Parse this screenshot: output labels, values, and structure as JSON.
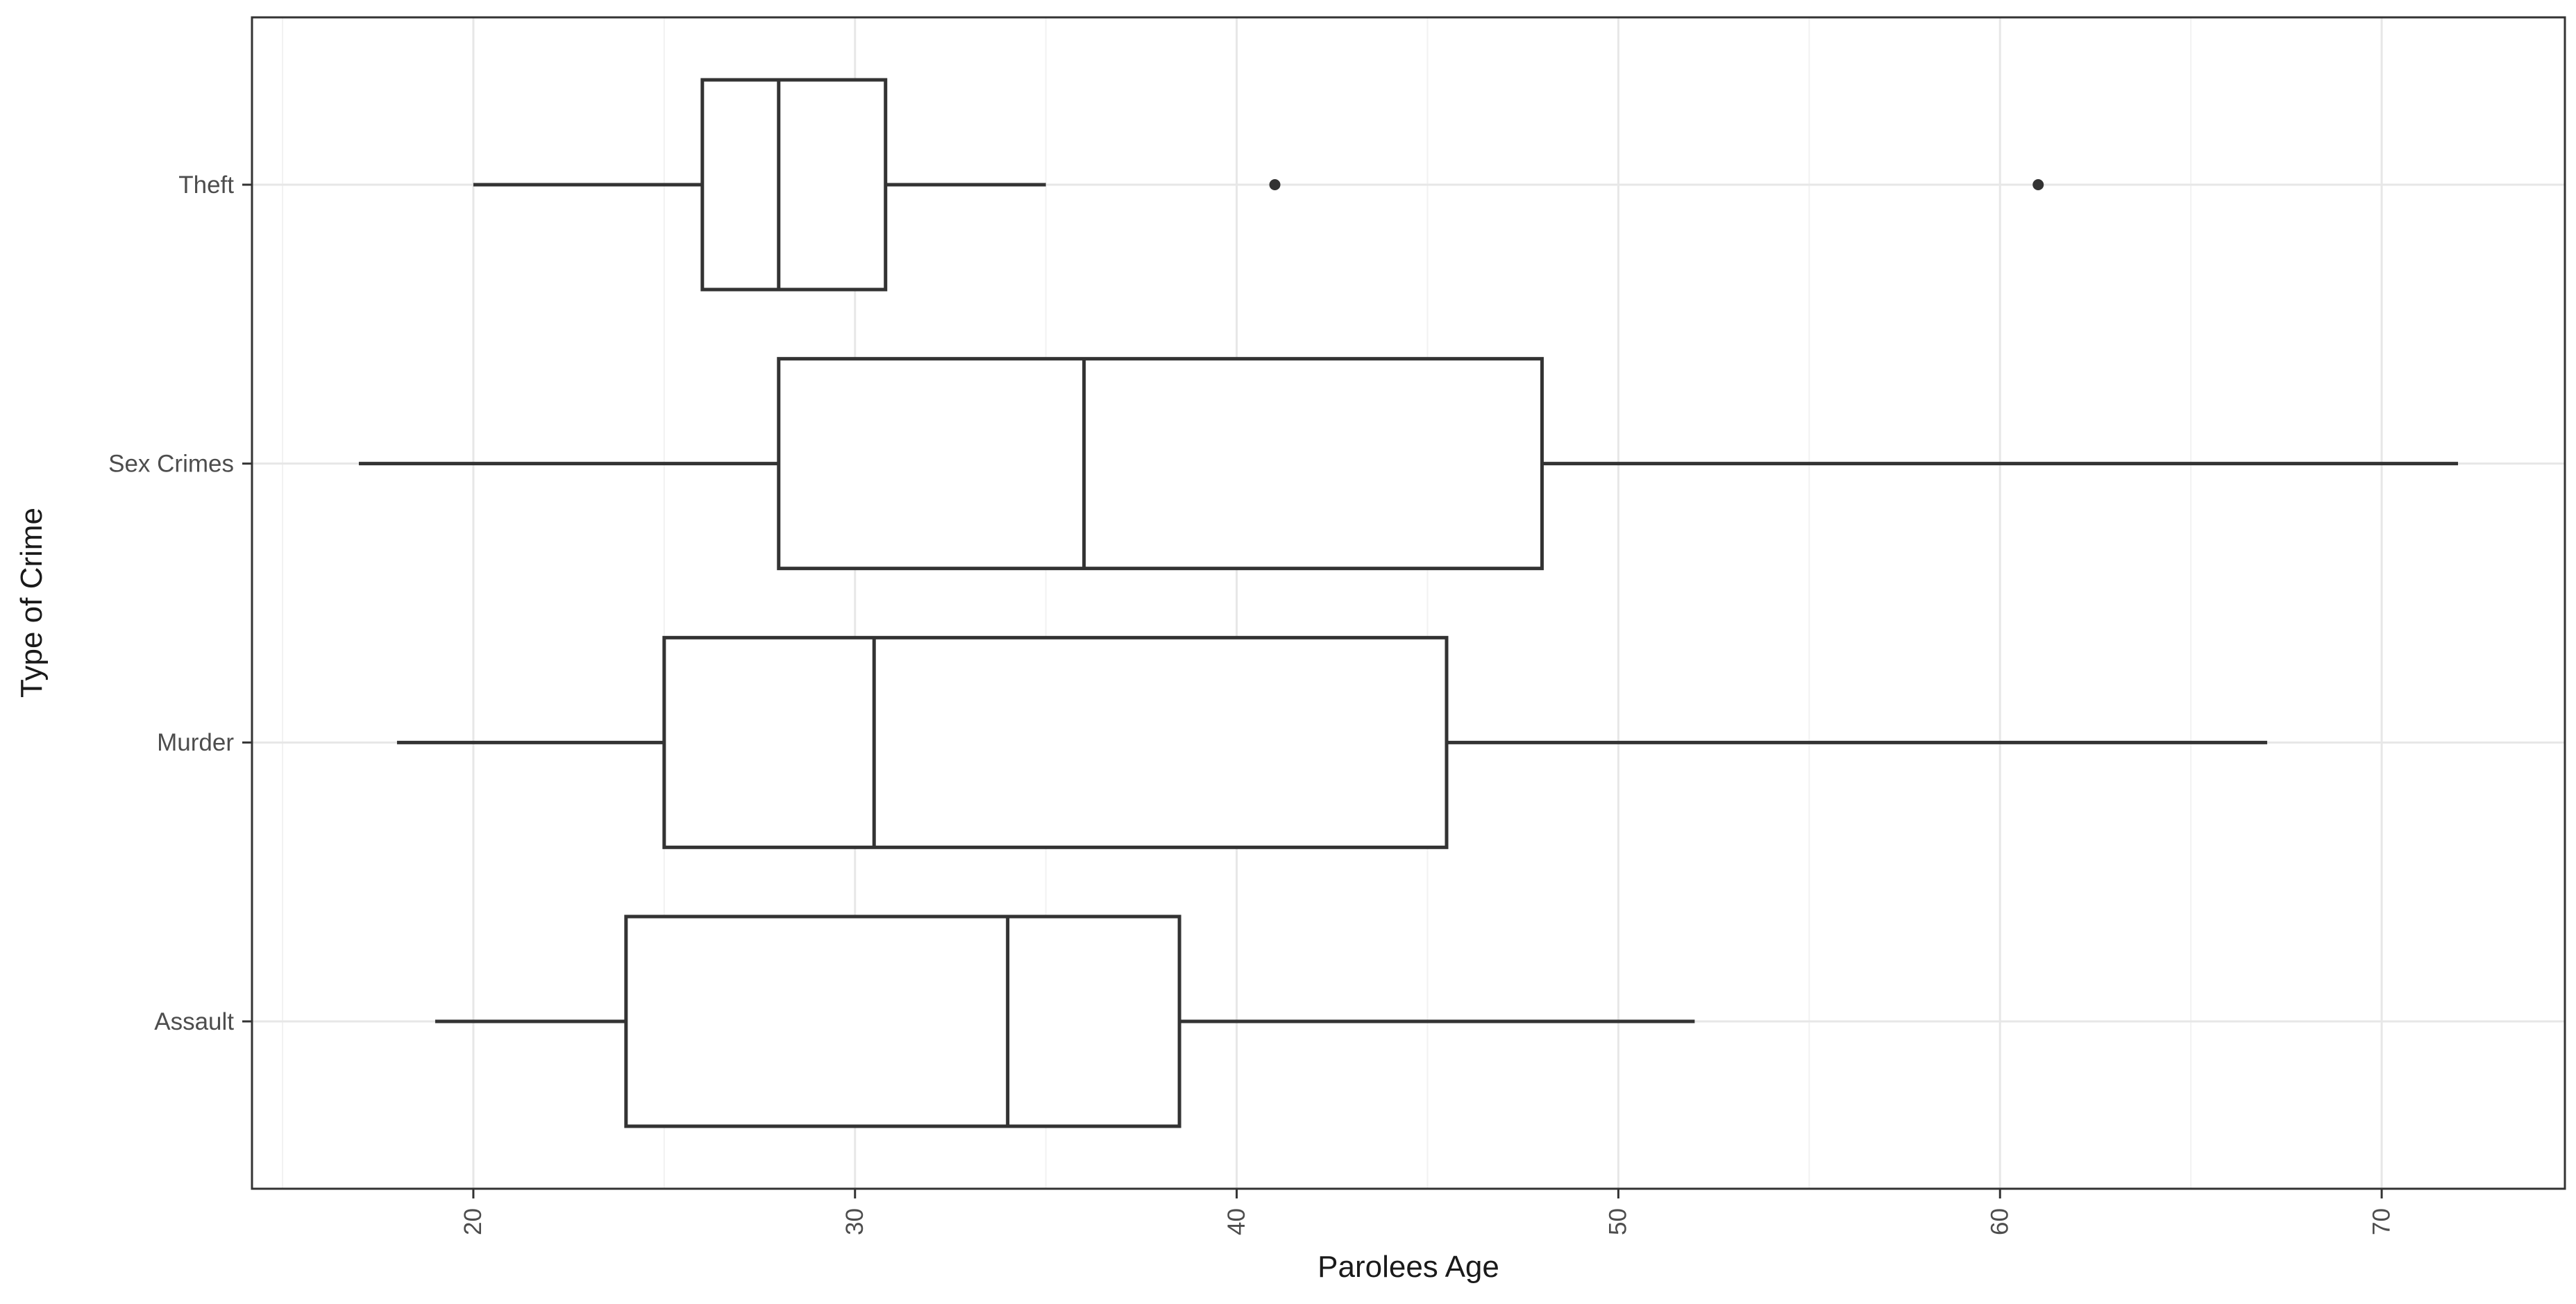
{
  "chart_data": {
    "type": "boxplot",
    "orientation": "horizontal",
    "title": "",
    "xlabel": "Parolees Age",
    "ylabel": "Type of Crime",
    "x_ticks": [
      20,
      30,
      40,
      50,
      60,
      70
    ],
    "x_tick_labels": [
      "20",
      "30",
      "40",
      "50",
      "60",
      "70"
    ],
    "x_minor_gridlines": [
      15,
      25,
      35,
      45,
      55,
      65
    ],
    "xlim": [
      14.2,
      74.8
    ],
    "grid": "major-and-minor-vertical, major-horizontal-per-category",
    "legend": "none",
    "categories_top_to_bottom": [
      "Theft",
      "Sex Crimes",
      "Murder",
      "Assault"
    ],
    "series": [
      {
        "category": "Theft",
        "min": 20,
        "q1": 26,
        "median": 28,
        "q3": 30.8,
        "max": 35,
        "outliers": [
          41,
          61
        ]
      },
      {
        "category": "Sex Crimes",
        "min": 17,
        "q1": 28,
        "median": 36,
        "q3": 48,
        "max": 72,
        "outliers": []
      },
      {
        "category": "Murder",
        "min": 18,
        "q1": 25,
        "median": 30.5,
        "q3": 45.5,
        "max": 67,
        "outliers": []
      },
      {
        "category": "Assault",
        "min": 19,
        "q1": 24,
        "median": 34,
        "q3": 38.5,
        "max": 52,
        "outliers": []
      }
    ]
  },
  "styles": {
    "background": "#ffffff",
    "panel_background": "#ffffff",
    "panel_border": "#333333",
    "box_stroke": "#333333",
    "box_fill": "#ffffff",
    "outlier_color": "#333333",
    "grid_major": "#e7e7e7",
    "grid_minor": "#f2f2f2",
    "axis_text": "#4d4d4d",
    "axis_title": "#1a1a1a"
  }
}
